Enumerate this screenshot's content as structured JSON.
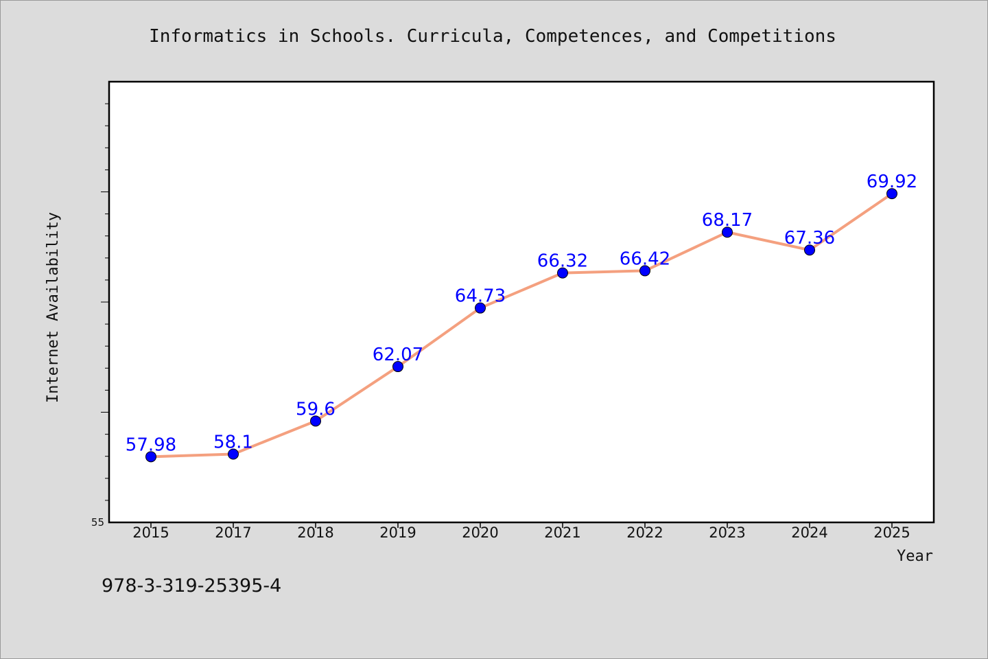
{
  "chart_data": {
    "type": "line",
    "title": "Informatics in Schools. Curricula, Competences, and Competitions",
    "xlabel": "Year",
    "ylabel": "Internet Availability",
    "categories": [
      "2015",
      "2017",
      "2018",
      "2019",
      "2020",
      "2021",
      "2022",
      "2023",
      "2024",
      "2025"
    ],
    "series": [
      {
        "values": [
          57.98,
          58.1,
          59.6,
          62.07,
          64.73,
          66.32,
          66.42,
          68.17,
          67.36,
          69.92
        ],
        "labels": [
          "57.98",
          "58.1",
          "59.6",
          "62.07",
          "64.73",
          "66.32",
          "66.42",
          "68.17",
          "67.36",
          "69.92"
        ],
        "line_color": "#f4a07f",
        "marker_color": "#0000ff"
      }
    ],
    "ylim": [
      55,
      75
    ],
    "yticks": [
      "55"
    ],
    "grid": false,
    "legend": "none"
  },
  "footer": {
    "isbn": "978-3-319-25395-4"
  },
  "colors": {
    "background": "#dcdcdc",
    "plot_area": "#ffffff",
    "line": "#f4a07f",
    "marker": "#0000ff",
    "data_label": "#0000ff"
  }
}
